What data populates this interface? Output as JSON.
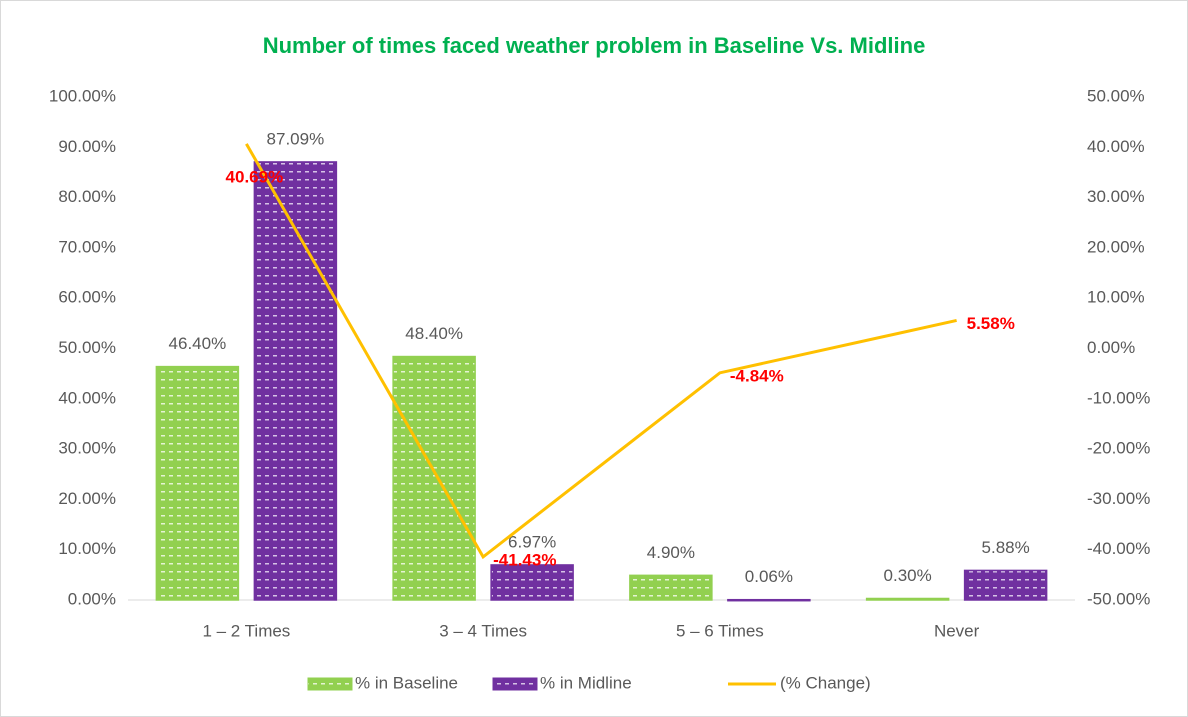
{
  "chart_data": {
    "type": "bar_line",
    "title": "Number of times faced weather problem  in Baseline Vs. Midline",
    "categories": [
      "1 – 2 Times",
      "3 – 4 Times",
      "5 – 6 Times",
      "Never"
    ],
    "series": [
      {
        "name": "% in  Baseline",
        "type": "bar",
        "color": "#92d050",
        "values": [
          46.4,
          48.4,
          4.9,
          0.3
        ],
        "value_labels": [
          "46.40%",
          "48.40%",
          "4.90%",
          "0.30%"
        ]
      },
      {
        "name": "% in Midline",
        "type": "bar",
        "color": "#7030a0",
        "values": [
          87.09,
          6.97,
          0.06,
          5.88
        ],
        "value_labels": [
          "87.09%",
          "6.97%",
          "0.06%",
          "5.88%"
        ]
      },
      {
        "name": "(% Change)",
        "type": "line",
        "axis": "y2",
        "color": "#ffc000",
        "label_color": "#ff0000",
        "values": [
          40.69,
          -41.43,
          -4.84,
          5.58
        ],
        "value_labels": [
          "40.69%",
          "-41.43%",
          "-4.84%",
          "5.58%"
        ]
      }
    ],
    "ylim": [
      0,
      100
    ],
    "yticks": [
      {
        "value": 0,
        "label": "0.00%"
      },
      {
        "value": 10,
        "label": "10.00%"
      },
      {
        "value": 20,
        "label": "20.00%"
      },
      {
        "value": 30,
        "label": "30.00%"
      },
      {
        "value": 40,
        "label": "40.00%"
      },
      {
        "value": 50,
        "label": "50.00%"
      },
      {
        "value": 60,
        "label": "60.00%"
      },
      {
        "value": 70,
        "label": "70.00%"
      },
      {
        "value": 80,
        "label": "80.00%"
      },
      {
        "value": 90,
        "label": "90.00%"
      },
      {
        "value": 100,
        "label": "100.00%"
      }
    ],
    "y2lim": [
      -50,
      50
    ],
    "y2ticks": [
      {
        "value": -50,
        "label": "-50.00%"
      },
      {
        "value": -40,
        "label": "-40.00%"
      },
      {
        "value": -30,
        "label": "-30.00%"
      },
      {
        "value": -20,
        "label": "-20.00%"
      },
      {
        "value": -10,
        "label": "-10.00%"
      },
      {
        "value": 0,
        "label": "0.00%"
      },
      {
        "value": 10,
        "label": "10.00%"
      },
      {
        "value": 20,
        "label": "20.00%"
      },
      {
        "value": 30,
        "label": "30.00%"
      },
      {
        "value": 40,
        "label": "40.00%"
      },
      {
        "value": 50,
        "label": "50.00%"
      }
    ],
    "legend": "bottom"
  }
}
